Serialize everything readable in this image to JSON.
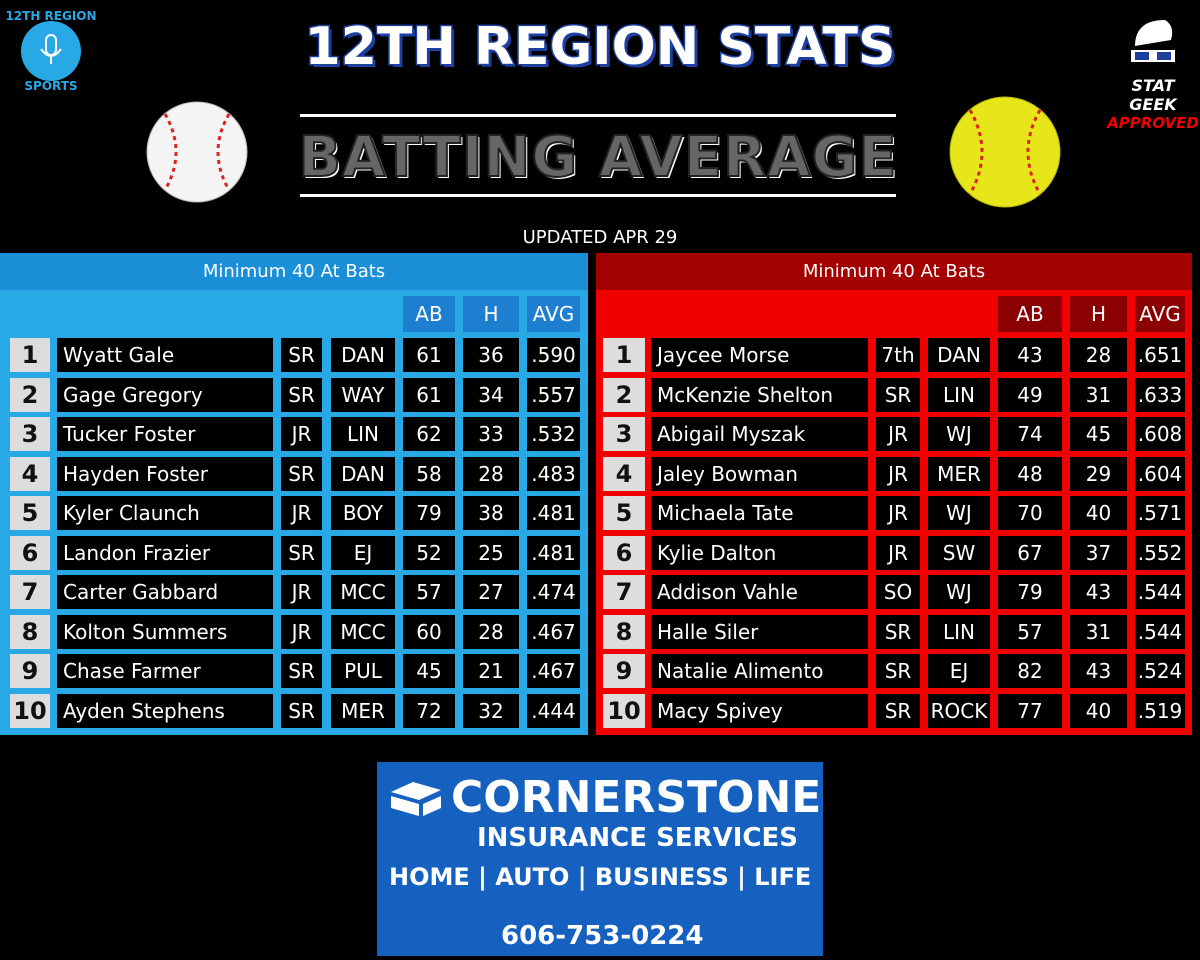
{
  "header": {
    "title": "12TH REGION STATS",
    "subtitle": "BATTING AVERAGE",
    "updated": "UPDATED APR 29",
    "left_logo": {
      "top": "12TH REGION",
      "bottom": "SPORTS"
    },
    "right_logo": {
      "line1": "STAT",
      "line2": "GEEK",
      "line3": "APPROVED"
    }
  },
  "tables": [
    {
      "caption": "Minimum 40 At Bats",
      "columns": [
        "AB",
        "H",
        "AVG"
      ],
      "rows": [
        [
          1,
          "Wyatt Gale",
          "SR",
          "DAN",
          61,
          36,
          ".590"
        ],
        [
          2,
          "Gage Gregory",
          "SR",
          "WAY",
          61,
          34,
          ".557"
        ],
        [
          3,
          "Tucker Foster",
          "JR",
          "LIN",
          62,
          33,
          ".532"
        ],
        [
          4,
          "Hayden Foster",
          "SR",
          "DAN",
          58,
          28,
          ".483"
        ],
        [
          5,
          "Kyler Claunch",
          "JR",
          "BOY",
          79,
          38,
          ".481"
        ],
        [
          6,
          "Landon Frazier",
          "SR",
          "EJ",
          52,
          25,
          ".481"
        ],
        [
          7,
          "Carter Gabbard",
          "JR",
          "MCC",
          57,
          27,
          ".474"
        ],
        [
          8,
          "Kolton Summers",
          "JR",
          "MCC",
          60,
          28,
          ".467"
        ],
        [
          9,
          "Chase Farmer",
          "SR",
          "PUL",
          45,
          21,
          ".467"
        ],
        [
          10,
          "Ayden Stephens",
          "SR",
          "MER",
          72,
          32,
          ".444"
        ]
      ]
    },
    {
      "caption": "Minimum 40 At Bats",
      "columns": [
        "AB",
        "H",
        "AVG"
      ],
      "rows": [
        [
          1,
          "Jaycee Morse",
          "7th",
          "DAN",
          43,
          28,
          ".651"
        ],
        [
          2,
          "McKenzie Shelton",
          "SR",
          "LIN",
          49,
          31,
          ".633"
        ],
        [
          3,
          "Abigail Myszak",
          "JR",
          "WJ",
          74,
          45,
          ".608"
        ],
        [
          4,
          "Jaley Bowman",
          "JR",
          "MER",
          48,
          29,
          ".604"
        ],
        [
          5,
          "Michaela Tate",
          "JR",
          "WJ",
          70,
          40,
          ".571"
        ],
        [
          6,
          "Kylie Dalton",
          "JR",
          "SW",
          67,
          37,
          ".552"
        ],
        [
          7,
          "Addison Vahle",
          "SO",
          "WJ",
          79,
          43,
          ".544"
        ],
        [
          8,
          "Halle Siler",
          "SR",
          "LIN",
          57,
          31,
          ".544"
        ],
        [
          9,
          "Natalie Alimento",
          "SR",
          "EJ",
          82,
          43,
          ".524"
        ],
        [
          10,
          "Macy Spivey",
          "SR",
          "ROCK",
          77,
          40,
          ".519"
        ]
      ]
    }
  ],
  "sponsor": {
    "name": "CORNERSTONE",
    "tagline": "INSURANCE SERVICES",
    "lines": "HOME | AUTO | BUSINESS | LIFE",
    "phone": "606-753-0224"
  }
}
